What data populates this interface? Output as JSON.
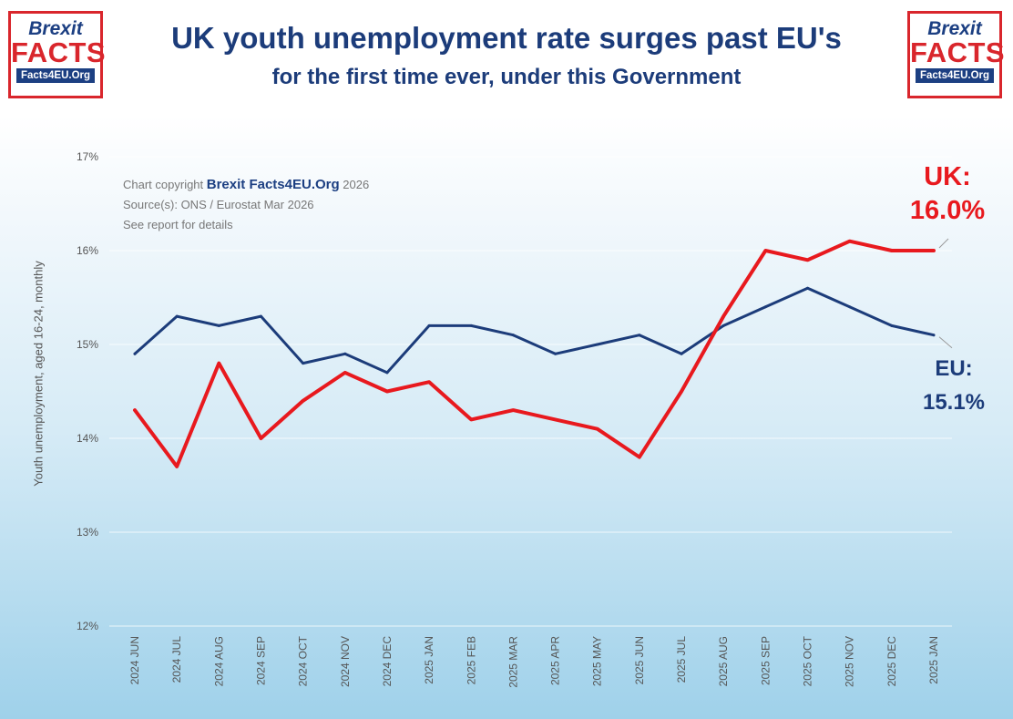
{
  "logo": {
    "line1": "Brexit",
    "line2": "FACTS",
    "line3": "Facts4EU.Org"
  },
  "header": {
    "title": "UK youth unemployment rate surges past EU's",
    "subtitle": "for the first time ever, under this Government"
  },
  "copyright": {
    "prefix": "Chart copyright ",
    "brand": "Brexit Facts4EU.Org",
    "year": " 2026",
    "source": "Source(s): ONS / Eurostat Mar 2026",
    "note": "See report for details"
  },
  "callouts": {
    "uk_label": "UK:",
    "uk_value": "16.0%",
    "eu_label": "EU:",
    "eu_value": "15.1%"
  },
  "chart_data": {
    "type": "line",
    "ylabel": "Youth unemployment, aged 16-24, monthly",
    "ylim": [
      12,
      17
    ],
    "yticks": [
      "12%",
      "13%",
      "14%",
      "15%",
      "16%",
      "17%"
    ],
    "grid": true,
    "categories": [
      "2024 JUN",
      "2024 JUL",
      "2024 AUG",
      "2024 SEP",
      "2024 OCT",
      "2024 NOV",
      "2024 DEC",
      "2025 JAN",
      "2025 FEB",
      "2025 MAR",
      "2025 APR",
      "2025 MAY",
      "2025 JUN",
      "2025 JUL",
      "2025 AUG",
      "2025 SEP",
      "2025 OCT",
      "2025 NOV",
      "2025 DEC",
      "2025 JAN"
    ],
    "series": [
      {
        "name": "EU",
        "color": "#1c3c7a",
        "values": [
          14.9,
          15.3,
          15.2,
          15.3,
          14.8,
          14.9,
          14.7,
          15.2,
          15.2,
          15.1,
          14.9,
          15.0,
          15.1,
          14.9,
          15.2,
          15.4,
          15.6,
          15.4,
          15.2,
          15.1
        ]
      },
      {
        "name": "UK",
        "color": "#e8191e",
        "values": [
          14.3,
          13.7,
          14.8,
          14.0,
          14.4,
          14.7,
          14.5,
          14.6,
          14.2,
          14.3,
          14.2,
          14.1,
          13.8,
          14.5,
          15.3,
          16.0,
          15.9,
          16.1,
          16.0,
          16.0
        ]
      }
    ]
  }
}
